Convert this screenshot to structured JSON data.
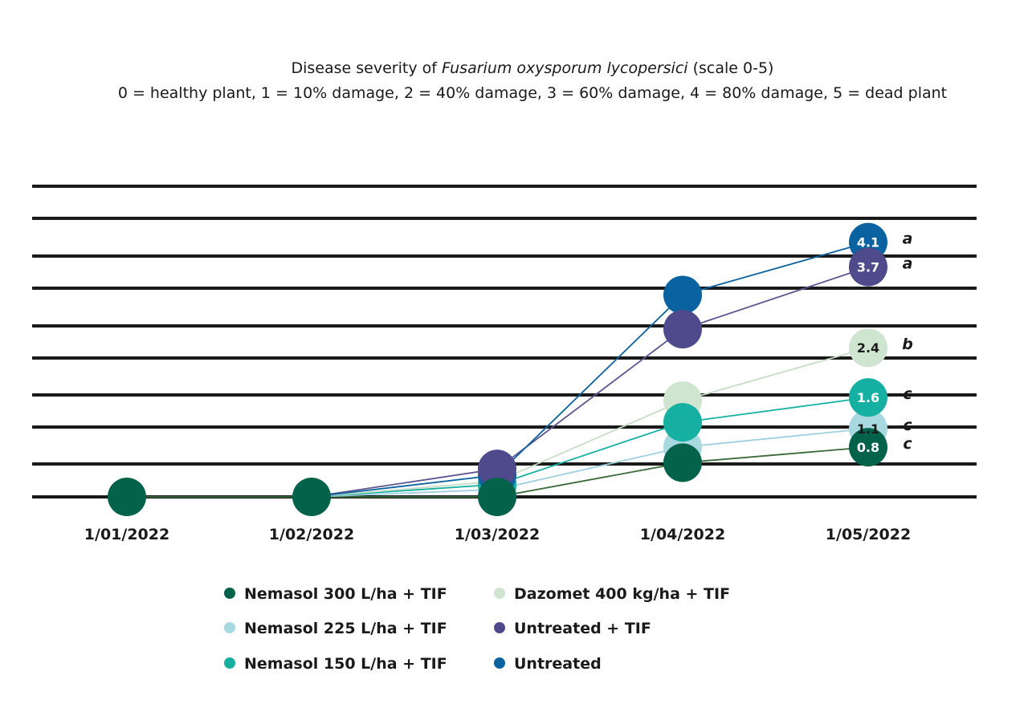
{
  "chart_data": {
    "type": "line",
    "title_line1_pre": "Disease severity of ",
    "title_line1_italic": "Fusarium oxysporum lycopersici",
    "title_line1_post": " (scale 0-5)",
    "subtitle": "0 = healthy plant, 1 = 10% damage, 2 = 40% damage, 3 = 60% damage, 4 = 80% damage, 5 = dead plant",
    "xlabel": "",
    "ylabel": "",
    "ylim": [
      0,
      5
    ],
    "grid": true,
    "legend_position": "bottom",
    "x": [
      "1/01/2022",
      "1/02/2022",
      "1/03/2022",
      "1/04/2022",
      "1/05/2022"
    ],
    "series": [
      {
        "name": "Nemasol 300 L/ha + TIF",
        "color": "#03634a",
        "text_color": "#ffffff",
        "values": [
          0,
          0,
          0,
          0.55,
          0.8
        ],
        "final_label": "0.8",
        "significance": "c"
      },
      {
        "name": "Nemasol 225 L/ha + TIF",
        "color": "#a8d8e0",
        "text_color": "#1a1a1a",
        "values": [
          null,
          0,
          0.12,
          0.8,
          1.1
        ],
        "final_label": "1.1",
        "significance": "c"
      },
      {
        "name": "Nemasol 150 L/ha + TIF",
        "color": "#16b0a2",
        "text_color": "#ffffff",
        "values": [
          null,
          0,
          0.2,
          1.2,
          1.6
        ],
        "final_label": "1.6",
        "significance": "c"
      },
      {
        "name": "Dazomet 400 kg/ha + TIF",
        "color": "#cfe5cf",
        "text_color": "#1a1a1a",
        "values": [
          null,
          0,
          0.25,
          1.55,
          2.4
        ],
        "final_label": "2.4",
        "significance": "b"
      },
      {
        "name": "Untreated + TIF",
        "color": "#4e4a8b",
        "text_color": "#ffffff",
        "values": [
          null,
          0,
          0.45,
          2.7,
          3.7
        ],
        "final_label": "3.7",
        "significance": "a"
      },
      {
        "name": "Untreated",
        "color": "#0b62a0",
        "text_color": "#ffffff",
        "values": [
          null,
          0,
          0.35,
          3.25,
          4.1
        ],
        "final_label": "4.1",
        "significance": "a"
      }
    ],
    "legend_columns": [
      [
        "Nemasol 300 L/ha + TIF",
        "Nemasol 225 L/ha + TIF",
        "Nemasol 150 L/ha + TIF"
      ],
      [
        "Dazomet 400 kg/ha + TIF",
        "Untreated + TIF",
        "Untreated"
      ]
    ],
    "colors": {
      "grid_line": "#1a1a1a",
      "line_series_1": "#3b6b3b",
      "line_series_2": "#9fd0e0",
      "line_series_3": "#16b0a2",
      "line_series_4": "#c6dcc6",
      "line_series_5": "#5b5590",
      "line_series_6": "#0b62a0"
    }
  }
}
